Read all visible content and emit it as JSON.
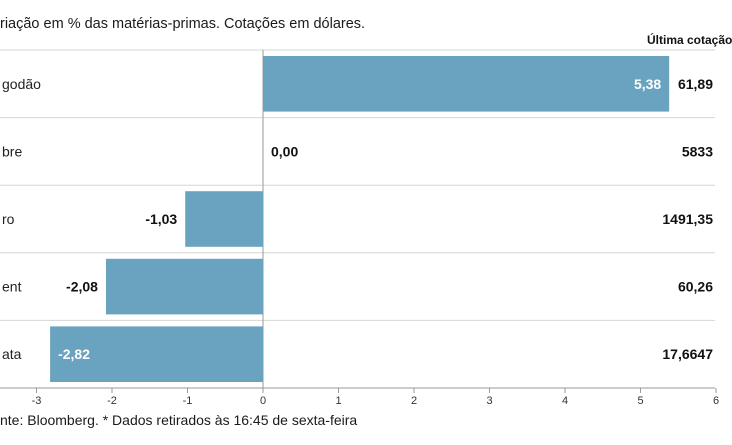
{
  "subtitle": "riação em % das matérias-primas. Cotações em dólares.",
  "last_header": "Última cotação",
  "source": "nte: Bloomberg.  * Dados retirados às 16:45 de sexta-feira",
  "colors": {
    "bar": "#6aa3bf",
    "grid": "#d6d6d6",
    "axis": "#999999"
  },
  "chart_data": {
    "type": "bar",
    "orientation": "horizontal",
    "categories": [
      "godão",
      "bre",
      "ro",
      "ent",
      "ata"
    ],
    "values": [
      5.38,
      0.0,
      -1.03,
      -2.08,
      -2.82
    ],
    "value_labels": [
      "5,38",
      "0,00",
      "-1,03",
      "-2,08",
      "-2,82"
    ],
    "last_quotes": [
      "61,89",
      "5833",
      "1491,35",
      "60,26",
      "17,6647"
    ],
    "xlim": [
      -3,
      6
    ],
    "xticks": [
      "-3",
      "-2",
      "-1",
      "0",
      "1",
      "2",
      "3",
      "4",
      "5",
      "6"
    ],
    "grid": true
  }
}
